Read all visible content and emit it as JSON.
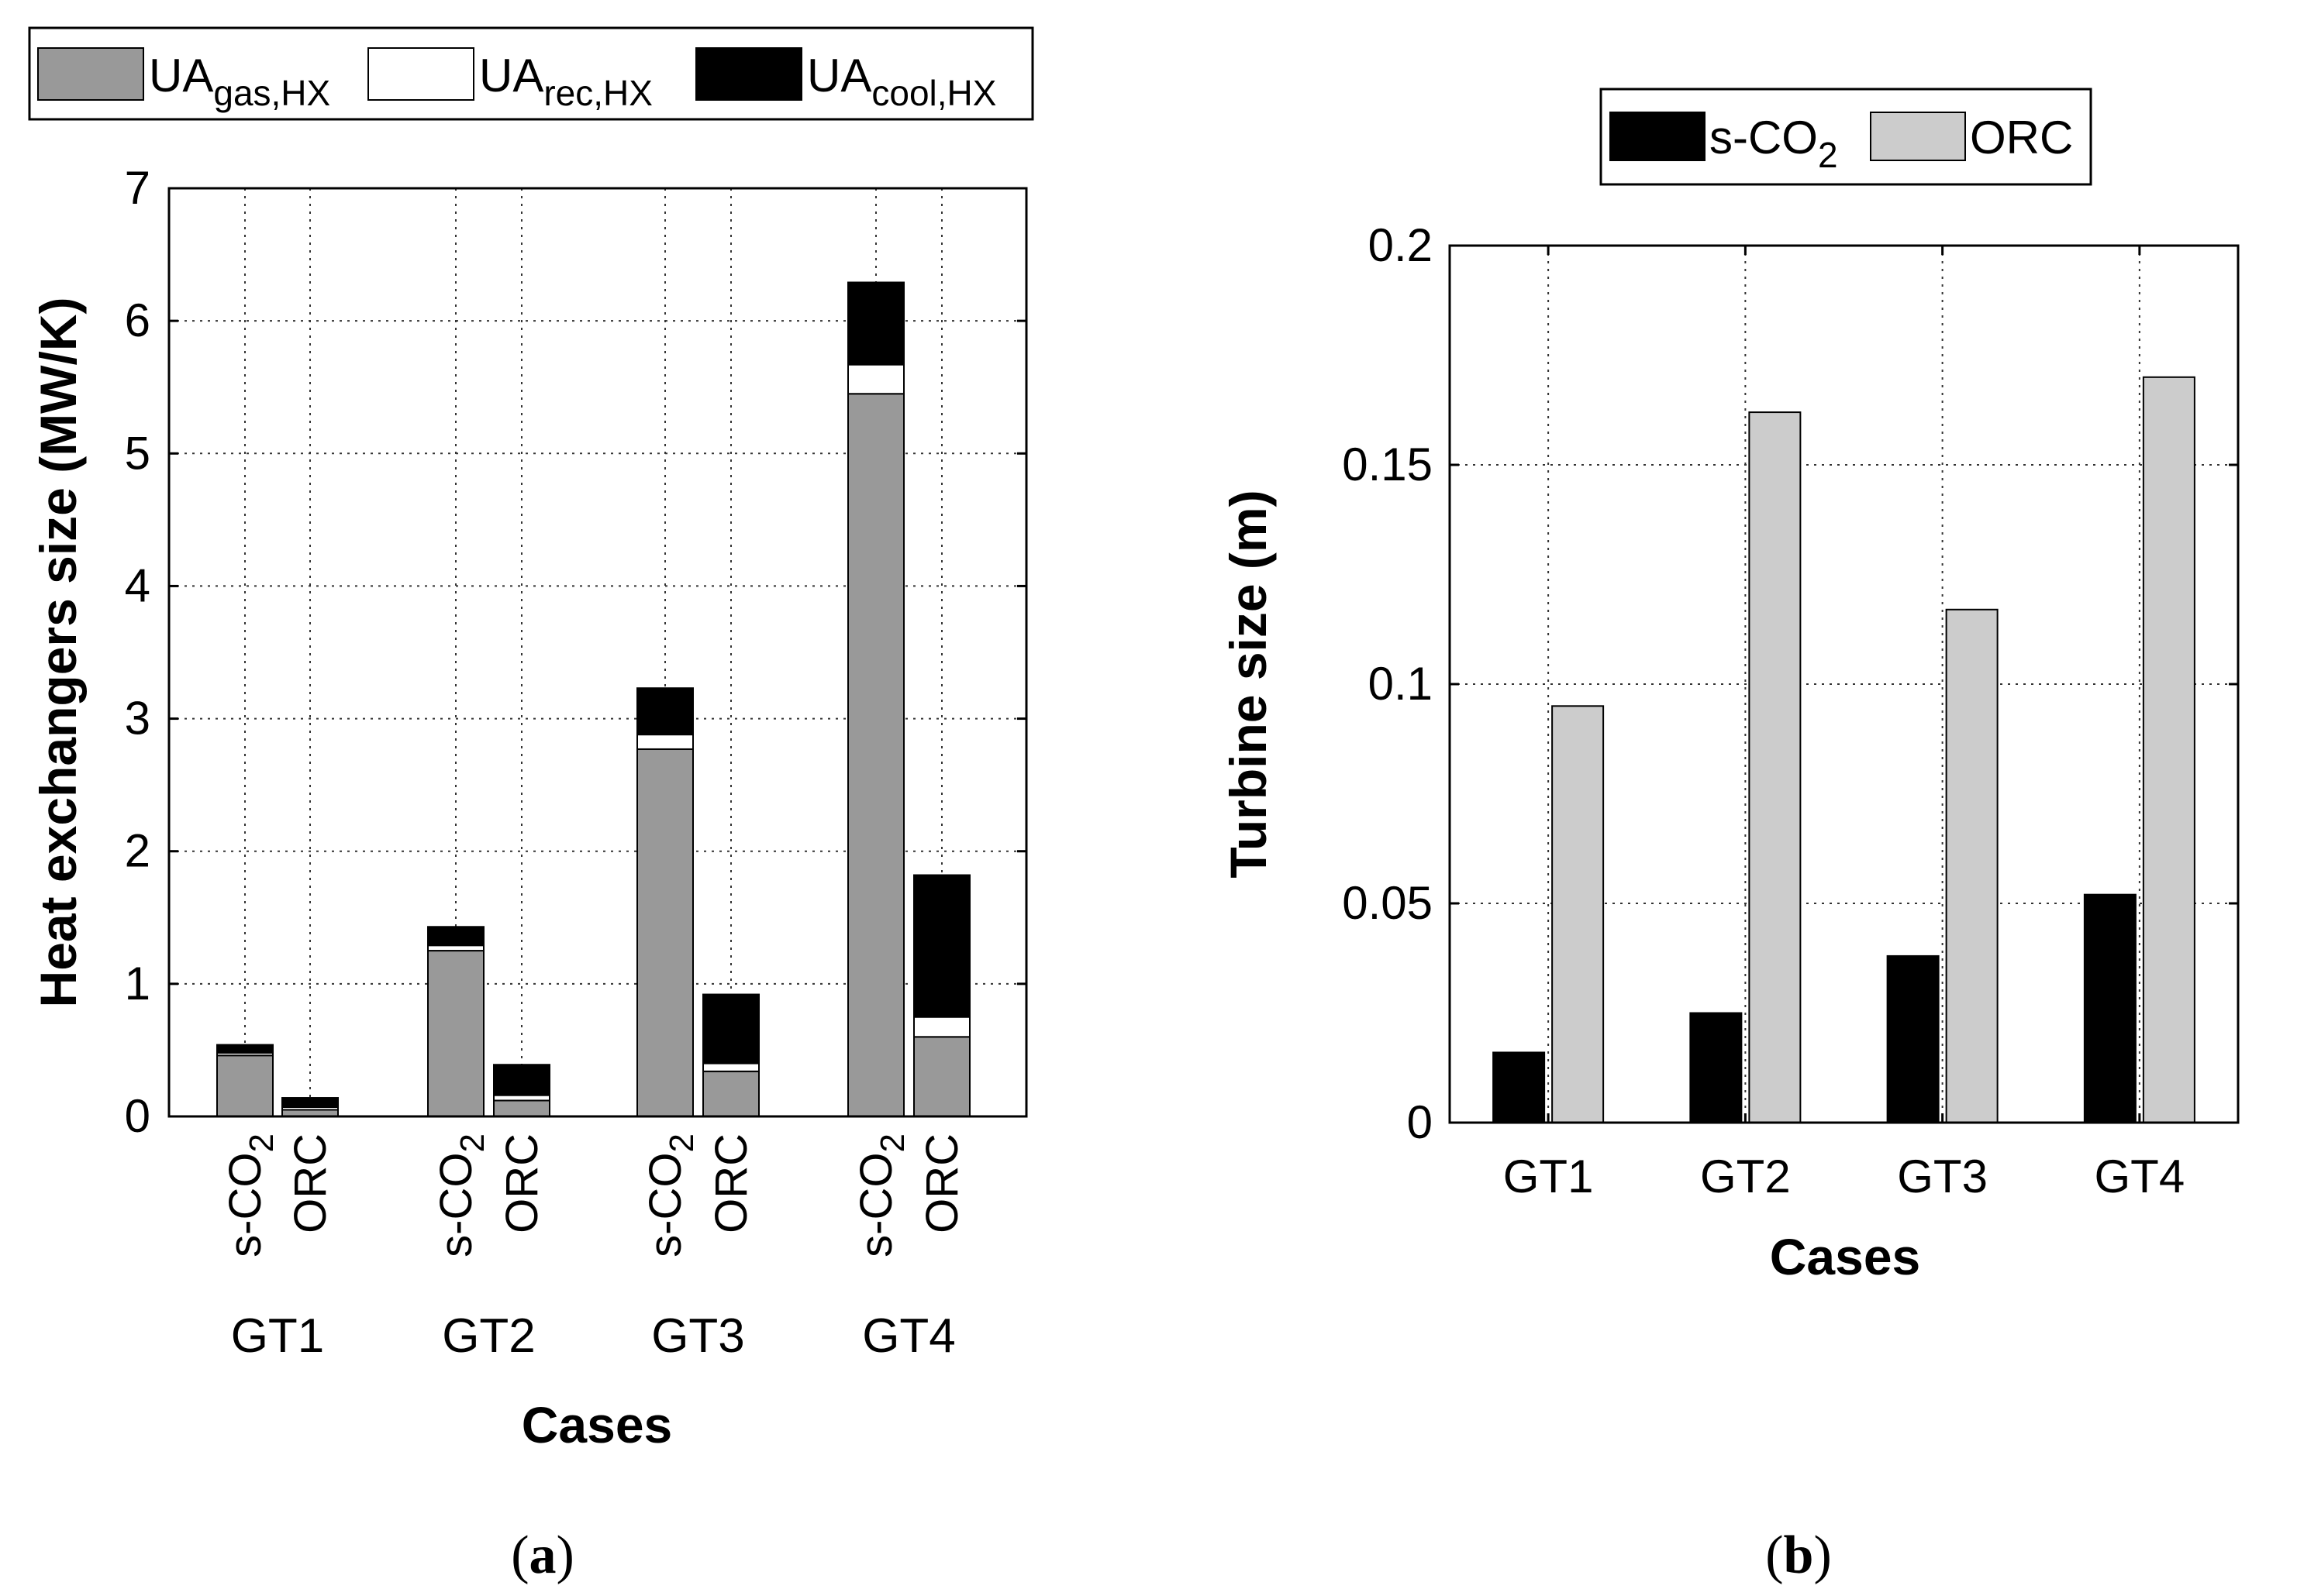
{
  "colors": {
    "gas": "#999999",
    "rec": "#ffffff",
    "cool": "#000000",
    "sco2": "#000000",
    "orc": "#cccccc"
  },
  "captions": {
    "a": "(a)",
    "b": "(b)"
  },
  "chart_data": [
    {
      "id": "a",
      "type": "bar",
      "stacked": true,
      "grid": true,
      "title": "",
      "xlabel": "Cases",
      "ylabel": "Heat exchangers size (MW/K)",
      "ylim": [
        0,
        7
      ],
      "yticks": [
        0,
        1,
        2,
        3,
        4,
        5,
        6,
        7
      ],
      "legend_position": "top (outside)",
      "groups": [
        "GT1",
        "GT2",
        "GT3",
        "GT4"
      ],
      "bar_labels": {
        "sco2": {
          "base": "s-CO",
          "sub": "2"
        },
        "orc": {
          "base": "ORC",
          "sub": ""
        }
      },
      "legend": [
        {
          "key": "gas",
          "base": "UA",
          "sub": "gas,HX"
        },
        {
          "key": "rec",
          "base": "UA",
          "sub": "rec,HX"
        },
        {
          "key": "cool",
          "base": "UA",
          "sub": "cool,HX"
        }
      ],
      "bars": [
        {
          "group": "GT1",
          "cycle": "sco2",
          "gas": 0.46,
          "rec": 0.02,
          "cool": 0.06
        },
        {
          "group": "GT1",
          "cycle": "orc",
          "gas": 0.05,
          "rec": 0.02,
          "cool": 0.07
        },
        {
          "group": "GT2",
          "cycle": "sco2",
          "gas": 1.25,
          "rec": 0.04,
          "cool": 0.14
        },
        {
          "group": "GT2",
          "cycle": "orc",
          "gas": 0.12,
          "rec": 0.04,
          "cool": 0.23
        },
        {
          "group": "GT3",
          "cycle": "sco2",
          "gas": 2.77,
          "rec": 0.11,
          "cool": 0.35
        },
        {
          "group": "GT3",
          "cycle": "orc",
          "gas": 0.34,
          "rec": 0.06,
          "cool": 0.52
        },
        {
          "group": "GT4",
          "cycle": "sco2",
          "gas": 5.45,
          "rec": 0.22,
          "cool": 0.62
        },
        {
          "group": "GT4",
          "cycle": "orc",
          "gas": 0.6,
          "rec": 0.15,
          "cool": 1.07
        }
      ]
    },
    {
      "id": "b",
      "type": "bar",
      "stacked": false,
      "grid": true,
      "title": "",
      "xlabel": "Cases",
      "ylabel": "Turbine size (m)",
      "ylim": [
        0,
        0.2
      ],
      "yticks": [
        0,
        0.05,
        0.1,
        0.15,
        0.2
      ],
      "ytick_labels": [
        "0",
        "0.05",
        "0.1",
        "0.15",
        "0.2"
      ],
      "legend_position": "top (outside)",
      "categories": [
        "GT1",
        "GT2",
        "GT3",
        "GT4"
      ],
      "series": [
        {
          "name": "s-CO2",
          "label_base": "s-CO",
          "label_sub": "2",
          "key": "sco2",
          "values": [
            0.016,
            0.025,
            0.038,
            0.052
          ]
        },
        {
          "name": "ORC",
          "label_base": "ORC",
          "label_sub": "",
          "key": "orc",
          "values": [
            0.095,
            0.162,
            0.117,
            0.17
          ]
        }
      ]
    }
  ]
}
